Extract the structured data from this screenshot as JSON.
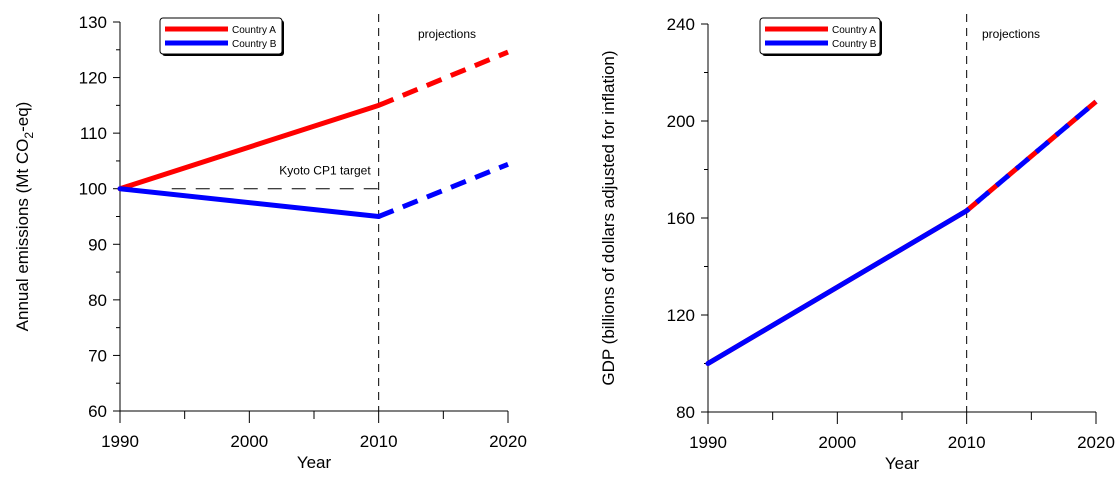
{
  "chart_data": [
    {
      "type": "line",
      "xlabel": "Year",
      "ylabel_main": "Annual emissions (Mt CO",
      "ylabel_sub": "2",
      "ylabel_end": "-eq)",
      "xlim": [
        1990,
        2020
      ],
      "ylim": [
        60,
        130
      ],
      "xticks": [
        "1990",
        "2000",
        "2010",
        "2020"
      ],
      "yticks": [
        "60",
        "70",
        "80",
        "90",
        "100",
        "110",
        "120",
        "130"
      ],
      "legend_placement": "top-center",
      "projection_start": 2010,
      "projection_label": "projections",
      "annotation": {
        "text": "Kyoto CP1 target",
        "x_start": 1994,
        "x_end": 2010,
        "y": 100
      },
      "series": [
        {
          "name": "Country A",
          "color": "#ff0000",
          "historical": [
            [
              1990,
              100
            ],
            [
              2010,
              115
            ]
          ],
          "projection": [
            [
              2010,
              115
            ],
            [
              2020,
              124.6
            ]
          ]
        },
        {
          "name": "Country B",
          "color": "#0000ff",
          "historical": [
            [
              1990,
              100
            ],
            [
              2010,
              95
            ]
          ],
          "projection": [
            [
              2010,
              95
            ],
            [
              2020,
              104.4
            ]
          ]
        }
      ]
    },
    {
      "type": "line",
      "xlabel": "Year",
      "ylabel_main": "GDP (billions of dollars adjusted for inflation)",
      "xlim": [
        1990,
        2020
      ],
      "ylim": [
        80,
        240
      ],
      "xticks": [
        "1990",
        "2000",
        "2010",
        "2020"
      ],
      "yticks": [
        "80",
        "120",
        "160",
        "200",
        "240"
      ],
      "legend_placement": "top-center",
      "projection_start": 2010,
      "projection_label": "projections",
      "series": [
        {
          "name": "Country A",
          "color": "#ff0000",
          "historical": [
            [
              1990,
              100
            ],
            [
              2010,
              163
            ]
          ],
          "projection": [
            [
              2010,
              163
            ],
            [
              2020,
              208
            ]
          ]
        },
        {
          "name": "Country B",
          "color": "#0000ff",
          "historical": [
            [
              1990,
              100
            ],
            [
              2010,
              163
            ]
          ],
          "projection": [
            [
              2010,
              163
            ],
            [
              2020,
              208
            ]
          ]
        }
      ]
    }
  ]
}
